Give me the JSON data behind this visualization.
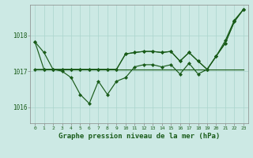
{
  "background_color": "#cce9e4",
  "grid_color": "#aad4cd",
  "line_color": "#1a5c1a",
  "title": "Graphe pression niveau de la mer (hPa)",
  "yticks": [
    1016,
    1017,
    1018
  ],
  "ylim": [
    1015.55,
    1018.85
  ],
  "xlim": [
    -0.5,
    23.5
  ],
  "series": {
    "s1": [
      1017.82,
      1017.52,
      1017.05,
      1017.0,
      1016.82,
      1016.35,
      1016.1,
      1016.72,
      1016.35,
      1016.72,
      1016.82,
      1017.12,
      1017.18,
      1017.18,
      1017.12,
      1017.18,
      1016.92,
      1017.22,
      1016.92,
      1017.05,
      1017.42,
      1017.85,
      1018.42,
      1018.72
    ],
    "s2": [
      1017.05,
      1017.05,
      1017.05,
      1017.05,
      1017.05,
      1017.05,
      1017.05,
      1017.05,
      1017.05,
      1017.05,
      1017.05,
      1017.05,
      1017.05,
      1017.05,
      1017.05,
      1017.05,
      1017.05,
      1017.05,
      1017.05,
      1017.05,
      1017.05,
      1017.05,
      1017.05,
      1017.05
    ],
    "s3": [
      1017.82,
      1017.05,
      1017.05,
      1017.05,
      1017.05,
      1017.05,
      1017.05,
      1017.05,
      1017.05,
      1017.05,
      1017.48,
      1017.52,
      1017.55,
      1017.55,
      1017.52,
      1017.55,
      1017.28,
      1017.52,
      1017.28,
      1017.05,
      1017.42,
      1017.78,
      1018.38,
      1018.72
    ],
    "s4": [
      1017.05,
      1017.05,
      1017.05,
      1017.05,
      1017.05,
      1017.05,
      1017.05,
      1017.05,
      1017.05,
      1017.05,
      1017.48,
      1017.52,
      1017.55,
      1017.55,
      1017.52,
      1017.55,
      1017.28,
      1017.52,
      1017.28,
      1017.05,
      1017.42,
      1017.78,
      1018.38,
      1018.72
    ]
  },
  "markers": {
    "s1": true,
    "s2": false,
    "s3": true,
    "s4": true
  }
}
